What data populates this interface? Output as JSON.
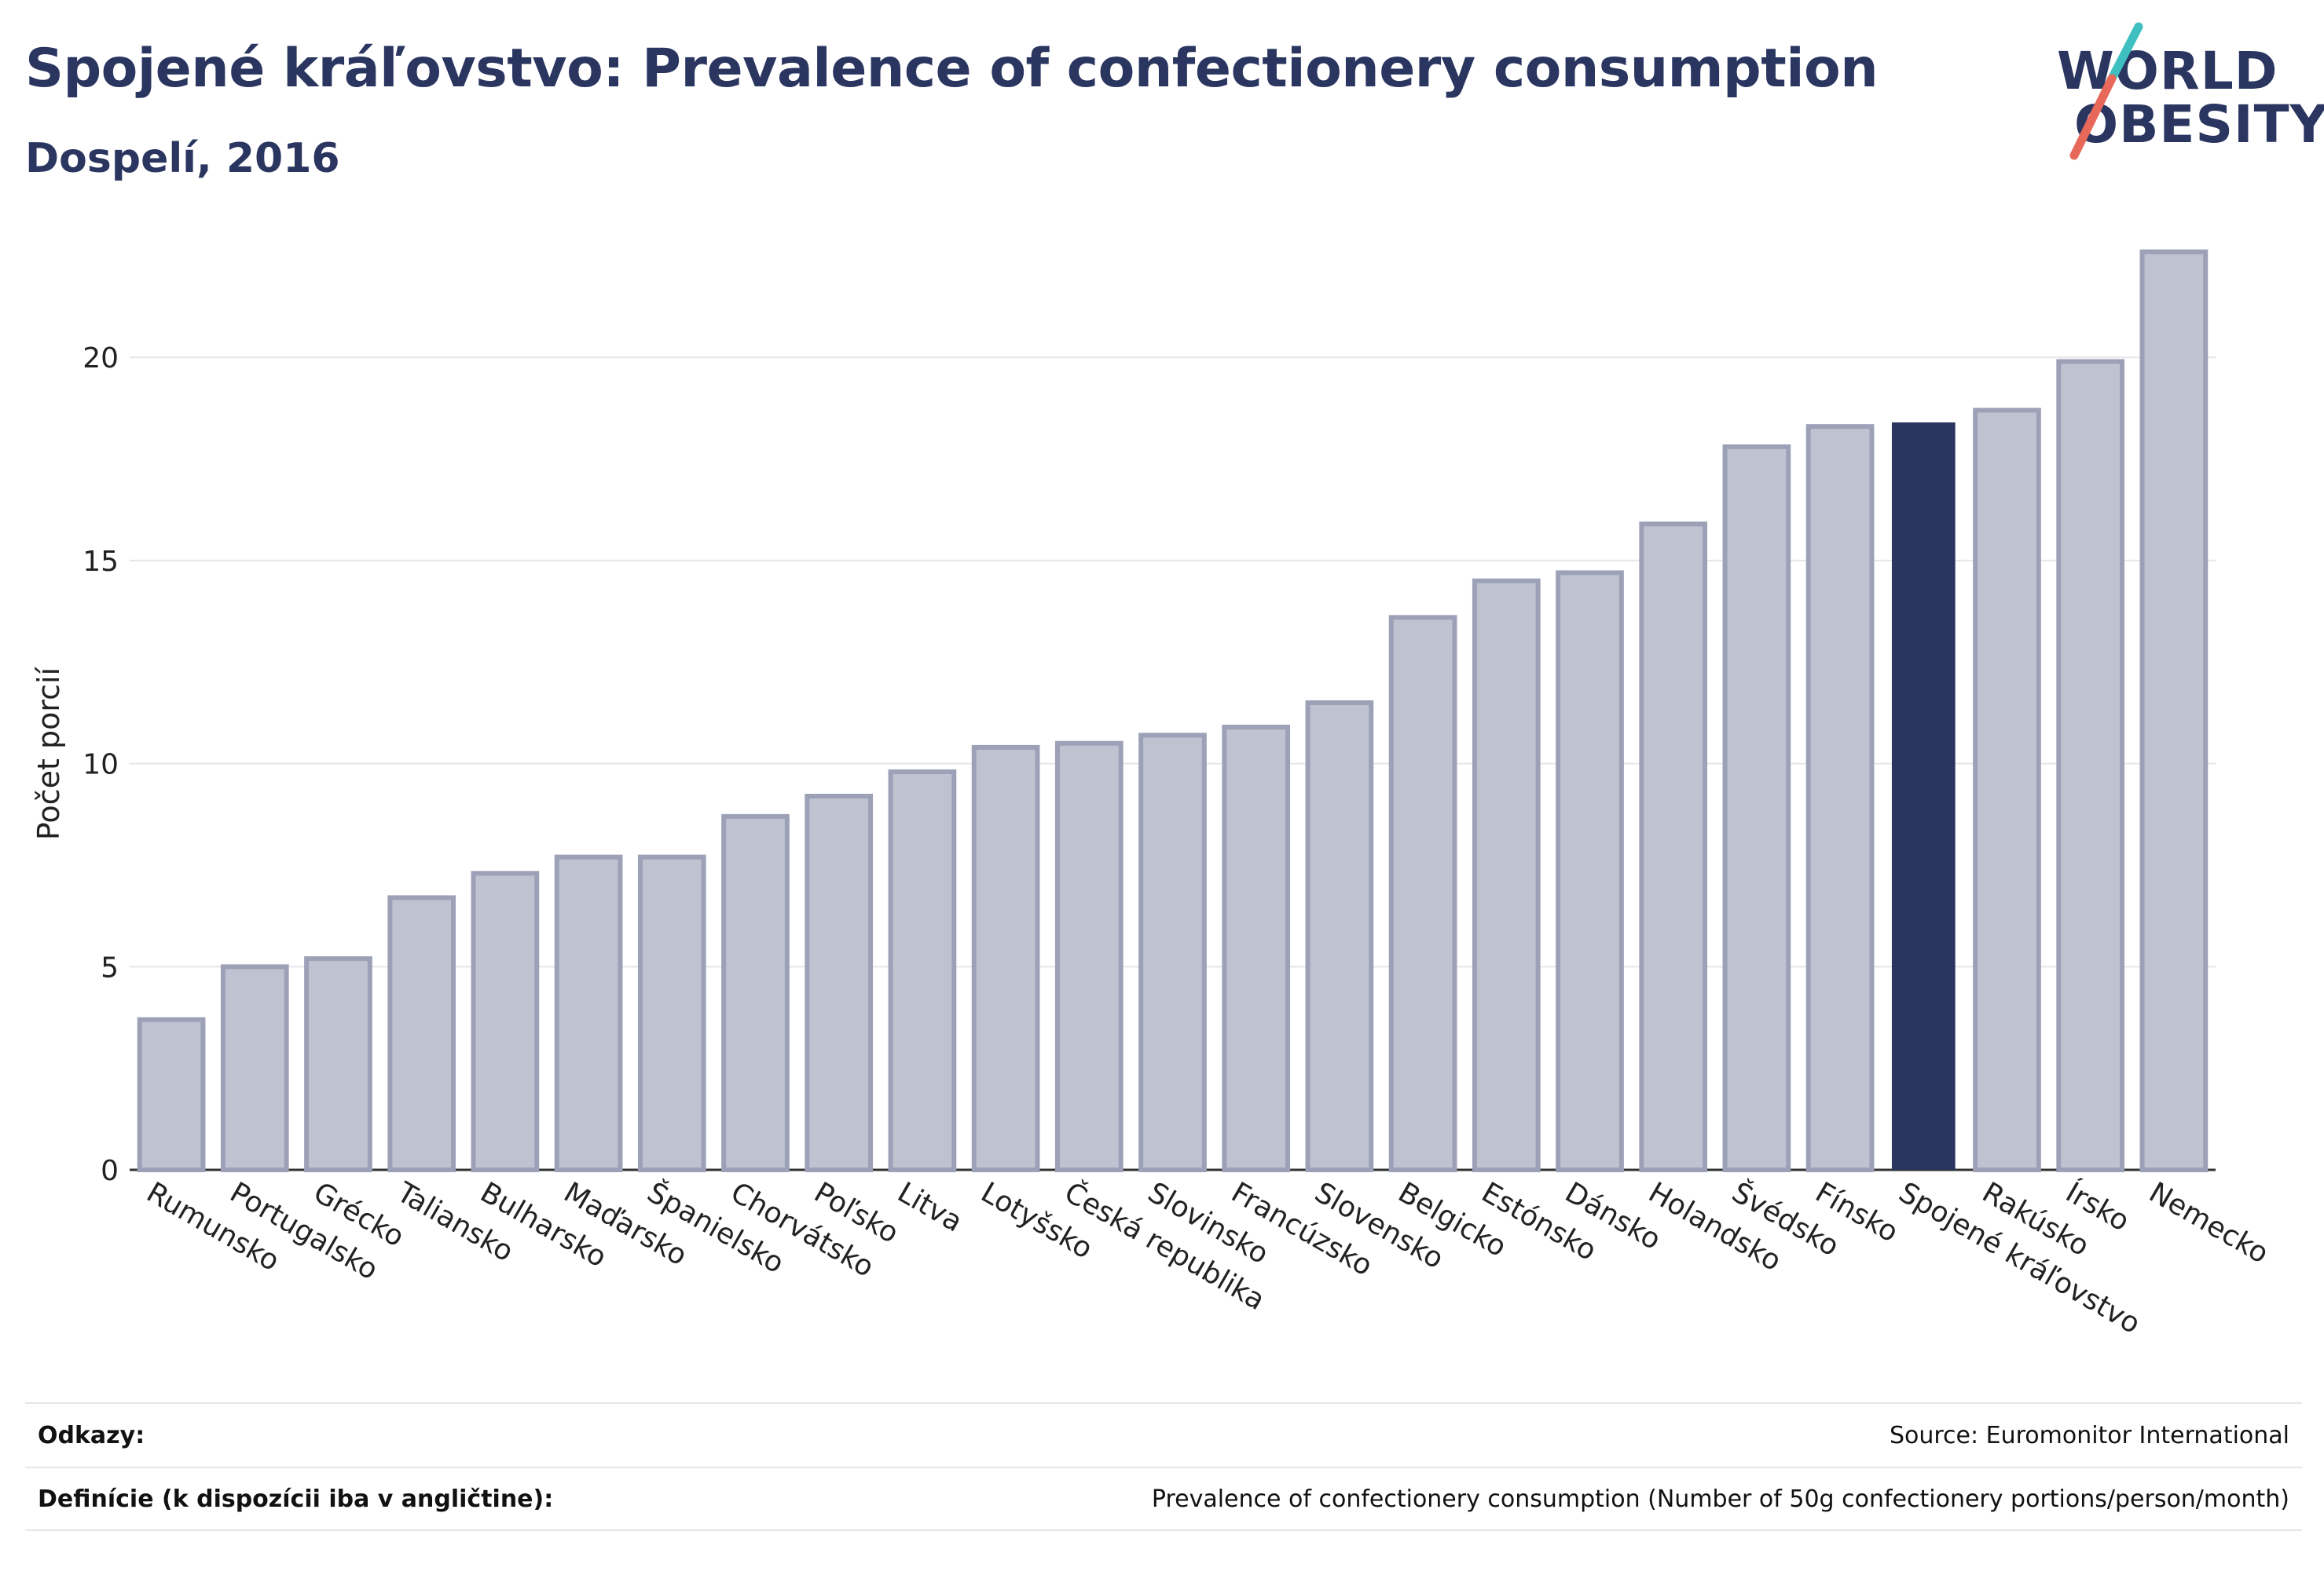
{
  "header": {
    "title": "Spojené kráľovstvo: Prevalence of confectionery consumption",
    "subtitle": "Dospelí, 2016"
  },
  "logo": {
    "line1": "WORLD",
    "line2": "OBESITY",
    "slash_colors": [
      "#3ebfc0",
      "#e8685a"
    ]
  },
  "colors": {
    "bar_default": "#bfc2d0",
    "bar_stroke": "#9da1b8",
    "bar_highlight": "#2a3560",
    "grid": "#e6e6ea"
  },
  "chart_data": {
    "type": "bar",
    "ylabel": "Počet porcií",
    "xlabel": "",
    "ylim": [
      0,
      23
    ],
    "yticks": [
      0,
      5,
      10,
      15,
      20
    ],
    "grid": true,
    "highlight": "Spojené kráľovstvo",
    "categories": [
      "Rumunsko",
      "Portugalsko",
      "Grécko",
      "Taliansko",
      "Bulharsko",
      "Maďarsko",
      "Španielsko",
      "Chorvátsko",
      "Poľsko",
      "Litva",
      "Lotyšsko",
      "Česká republika",
      "Slovinsko",
      "Francúzsko",
      "Slovensko",
      "Belgicko",
      "Estónsko",
      "Dánsko",
      "Holandsko",
      "Švédsko",
      "Fínsko",
      "Spojené kráľovstvo",
      "Rakúsko",
      "Írsko",
      "Nemecko"
    ],
    "values": [
      3.7,
      5.0,
      5.2,
      6.7,
      7.3,
      7.7,
      7.7,
      8.7,
      9.2,
      9.8,
      10.4,
      10.5,
      10.7,
      10.9,
      11.5,
      13.6,
      14.5,
      14.7,
      15.9,
      17.8,
      18.3,
      18.4,
      18.7,
      19.9,
      22.6
    ]
  },
  "footer": {
    "references_label": "Odkazy:",
    "references_value": "Source: Euromonitor International",
    "definitions_label": "Definície (k dispozícii iba v angličtine):",
    "definitions_value": "Prevalence of confectionery consumption (Number of 50g confectionery portions/person/month)"
  }
}
